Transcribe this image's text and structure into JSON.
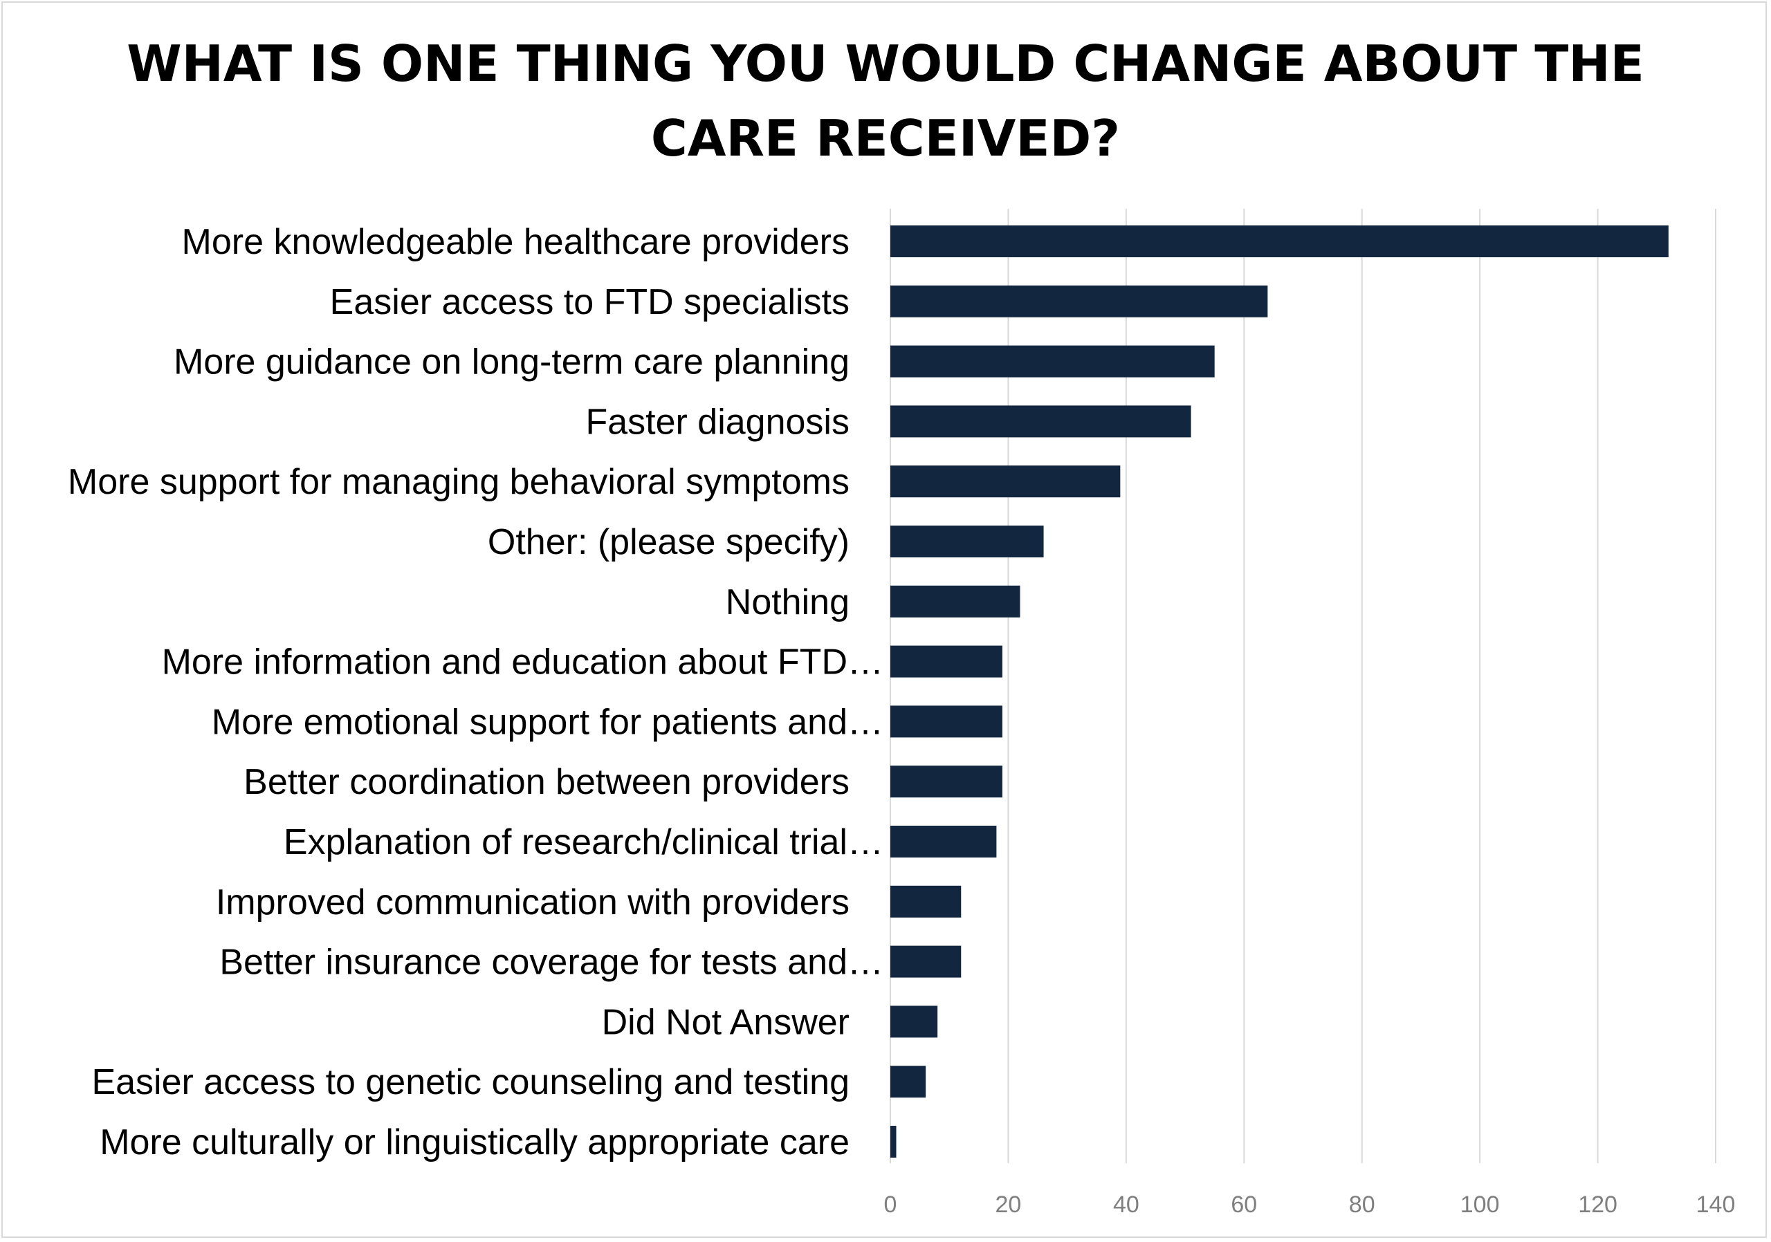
{
  "chart_data": {
    "type": "bar",
    "orientation": "horizontal",
    "title": "WHAT IS ONE THING YOU WOULD CHANGE ABOUT THE CARE RECEIVED?",
    "categories": [
      "More knowledgeable healthcare providers",
      "Easier access to FTD specialists",
      "More guidance on long-term care planning",
      "Faster diagnosis",
      "More support for managing behavioral symptoms",
      "Other: (please specify)",
      "Nothing",
      "More information and education about FTD…",
      "More emotional support for patients and…",
      "Better coordination between providers",
      "Explanation of research/clinical trial…",
      "Improved communication with providers",
      "Better insurance coverage for tests and…",
      "Did Not Answer",
      "Easier access to genetic counseling and testing",
      "More culturally or linguistically appropriate care"
    ],
    "values": [
      132,
      64,
      55,
      51,
      39,
      26,
      22,
      19,
      19,
      19,
      18,
      12,
      12,
      8,
      6,
      1
    ],
    "xlim": [
      0,
      140
    ],
    "xticks": [
      "0",
      "20",
      "40",
      "60",
      "80",
      "100",
      "120",
      "140"
    ],
    "grid": true,
    "legend": "none",
    "bar_color": "#12263f",
    "grid_color": "#d9d9d9"
  }
}
